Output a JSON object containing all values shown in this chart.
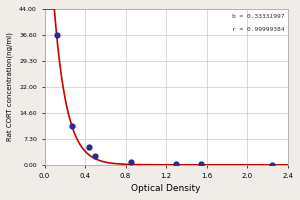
{
  "title": "",
  "xlabel": "Optical Density",
  "ylabel": "Rat CORT concentration(ng/ml)",
  "annotation_b": "b = 0.33331997",
  "annotation_r": "r = 0.99999384",
  "data_x": [
    0.12,
    0.27,
    0.44,
    0.5,
    0.85,
    1.3,
    1.55,
    2.25
  ],
  "data_y": [
    36.6,
    11.0,
    5.0,
    2.5,
    0.8,
    0.3,
    0.2,
    0.1
  ],
  "xlim": [
    0.0,
    2.4
  ],
  "ylim": [
    0.0,
    44.0
  ],
  "yticks": [
    0.0,
    7.3,
    14.6,
    22.0,
    29.3,
    36.6,
    44.0
  ],
  "xticks": [
    0.0,
    0.4,
    0.8,
    1.2,
    1.6,
    2.0,
    2.4
  ],
  "curve_color": "#cc0000",
  "point_color": "#2b2b8c",
  "background_color": "#f0ede8",
  "plot_bg_color": "#ffffff",
  "grid_color": "#cccccc",
  "fit_x_start": 0.001,
  "fit_x_end": 2.4,
  "b_param": 0.33331997,
  "k_param": 3.0,
  "a_param": 5.8
}
